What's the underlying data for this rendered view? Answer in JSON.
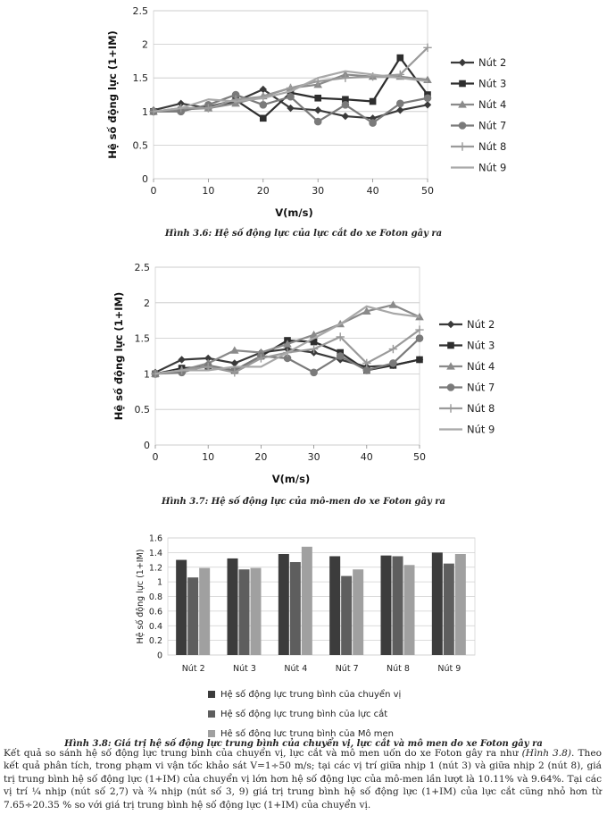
{
  "chart_data": [
    {
      "type": "line",
      "title": "",
      "xlabel": "V(m/s)",
      "ylabel": "Hệ số động lực (1+IM)",
      "xlim": [
        0,
        50
      ],
      "ylim": [
        0,
        2.5
      ],
      "x_ticks": [
        "0",
        "10",
        "20",
        "30",
        "40",
        "50"
      ],
      "y_ticks": [
        "0",
        "0.5",
        "1",
        "1.5",
        "2",
        "2.5"
      ],
      "x": [
        0,
        5,
        10,
        15,
        20,
        25,
        30,
        35,
        40,
        45,
        50
      ],
      "legend_position": "right",
      "series": [
        {
          "name": "Nút 2",
          "color": "#3a3a3a",
          "marker": "diamond",
          "values": [
            1.02,
            1.12,
            1.05,
            1.15,
            1.33,
            1.05,
            1.02,
            0.93,
            0.9,
            1.02,
            1.1
          ]
        },
        {
          "name": "Nút 3",
          "color": "#2e2e2e",
          "marker": "square",
          "values": [
            1.0,
            1.02,
            1.07,
            1.17,
            0.9,
            1.28,
            1.2,
            1.18,
            1.15,
            1.8,
            1.25
          ]
        },
        {
          "name": "Nút 4",
          "color": "#8a8a8a",
          "marker": "triangle",
          "values": [
            1.0,
            1.03,
            1.05,
            1.12,
            1.23,
            1.35,
            1.4,
            1.55,
            1.52,
            1.52,
            1.47
          ]
        },
        {
          "name": "Nút 7",
          "color": "#7a7a7a",
          "marker": "circle",
          "values": [
            1.0,
            1.0,
            1.1,
            1.25,
            1.1,
            1.22,
            0.85,
            1.1,
            0.83,
            1.12,
            1.2
          ]
        },
        {
          "name": "Nút 8",
          "color": "#9a9a9a",
          "marker": "plus",
          "values": [
            1.0,
            1.05,
            1.05,
            1.18,
            1.22,
            1.35,
            1.45,
            1.5,
            1.52,
            1.55,
            1.95
          ]
        },
        {
          "name": "Nút 9",
          "color": "#a8a8a8",
          "marker": "none",
          "values": [
            1.0,
            1.05,
            1.18,
            1.15,
            1.2,
            1.3,
            1.5,
            1.6,
            1.55,
            1.5,
            1.45
          ]
        }
      ]
    },
    {
      "type": "line",
      "title": "",
      "xlabel": "V(m/s)",
      "ylabel": "Hệ số động lực (1+IM)",
      "xlim": [
        0,
        50
      ],
      "ylim": [
        0,
        2.5
      ],
      "x_ticks": [
        "0",
        "10",
        "20",
        "30",
        "40",
        "50"
      ],
      "y_ticks": [
        "0",
        "0.5",
        "1",
        "1.5",
        "2",
        "2.5"
      ],
      "x": [
        0,
        5,
        10,
        15,
        20,
        25,
        30,
        35,
        40,
        45,
        50
      ],
      "legend_position": "right",
      "series": [
        {
          "name": "Nút 2",
          "color": "#3a3a3a",
          "marker": "diamond",
          "values": [
            1.02,
            1.2,
            1.22,
            1.15,
            1.3,
            1.35,
            1.3,
            1.2,
            1.1,
            1.12,
            1.2
          ]
        },
        {
          "name": "Nút 3",
          "color": "#2e2e2e",
          "marker": "square",
          "values": [
            1.0,
            1.08,
            1.1,
            1.05,
            1.25,
            1.47,
            1.45,
            1.3,
            1.05,
            1.12,
            1.2
          ]
        },
        {
          "name": "Nút 4",
          "color": "#8a8a8a",
          "marker": "triangle",
          "values": [
            1.0,
            1.05,
            1.15,
            1.33,
            1.3,
            1.42,
            1.55,
            1.7,
            1.88,
            1.97,
            1.8
          ]
        },
        {
          "name": "Nút 7",
          "color": "#7a7a7a",
          "marker": "circle",
          "values": [
            1.0,
            1.02,
            1.12,
            1.05,
            1.25,
            1.22,
            1.02,
            1.25,
            1.05,
            1.15,
            1.5
          ]
        },
        {
          "name": "Nút 8",
          "color": "#9a9a9a",
          "marker": "plus",
          "values": [
            1.0,
            1.05,
            1.1,
            1.02,
            1.22,
            1.3,
            1.35,
            1.52,
            1.15,
            1.35,
            1.62
          ]
        },
        {
          "name": "Nút 9",
          "color": "#a8a8a8",
          "marker": "none",
          "values": [
            1.0,
            1.05,
            1.05,
            1.1,
            1.1,
            1.3,
            1.5,
            1.7,
            1.95,
            1.85,
            1.8
          ]
        }
      ]
    },
    {
      "type": "bar",
      "title": "",
      "xlabel": "",
      "ylabel": "Hệ số động lực (1+IM)",
      "ylim": [
        0,
        1.6
      ],
      "y_ticks": [
        "0",
        "0.2",
        "0.4",
        "0.6",
        "0.8",
        "1",
        "1.2",
        "1.4",
        "1.6"
      ],
      "categories": [
        "Nút 2",
        "Nút 3",
        "Nút 4",
        "Nút 7",
        "Nút 8",
        "Nút 9"
      ],
      "legend_position": "bottom",
      "series": [
        {
          "name": "Hệ số động lực trung bình của chuyển vị",
          "color": "#3c3c3c",
          "values": [
            1.3,
            1.32,
            1.38,
            1.35,
            1.36,
            1.4
          ]
        },
        {
          "name": "Hệ số động lực trung bình của lực cắt",
          "color": "#5e5e5e",
          "values": [
            1.06,
            1.17,
            1.27,
            1.08,
            1.35,
            1.25
          ]
        },
        {
          "name": "Hệ số động lực trung bình của Mô men",
          "color": "#a0a0a0",
          "values": [
            1.19,
            1.19,
            1.48,
            1.17,
            1.23,
            1.38
          ]
        }
      ]
    }
  ],
  "captions": {
    "fig36": "Hình 3.6: Hệ số động lực của lực cắt do xe Foton gây ra",
    "fig37": "Hình 3.7: Hệ số động lực của mô-men do xe Foton gây ra",
    "fig38": "Hình 3.8: Giá trị hệ số động lực trung bình của chuyển vị, lực cắt và mô men do xe Foton gây ra"
  },
  "paragraph": {
    "part1": "Kết quả so sánh hệ số động lực trung bình của chuyển vị, lực cắt và mô men uốn do xe Foton gây ra như ",
    "fig_ref": "(Hình 3.8)",
    "part2": ". Theo kết quả phân tích, trong phạm vi vận tốc khảo sát V=1÷50 m/s; tại các vị trí giữa nhịp 1 (nút 3) và giữa nhịp 2 (nút 8), giá trị trung bình hệ số động lực (1+IM) của chuyển vị lớn hơn hệ số động lực của  mô-men lần lượt là  10.11% và 9.64%. Tại các vị trí ¼ nhịp (nút số 2,7) và ¾ nhịp (nút số 3, 9) giá trị trung bình hệ số động lực (1+IM) của lực cắt cũng nhỏ hơn từ 7.65÷20.35 % so với giá trị trung bình hệ số động lực (1+IM) của chuyển vị."
  }
}
